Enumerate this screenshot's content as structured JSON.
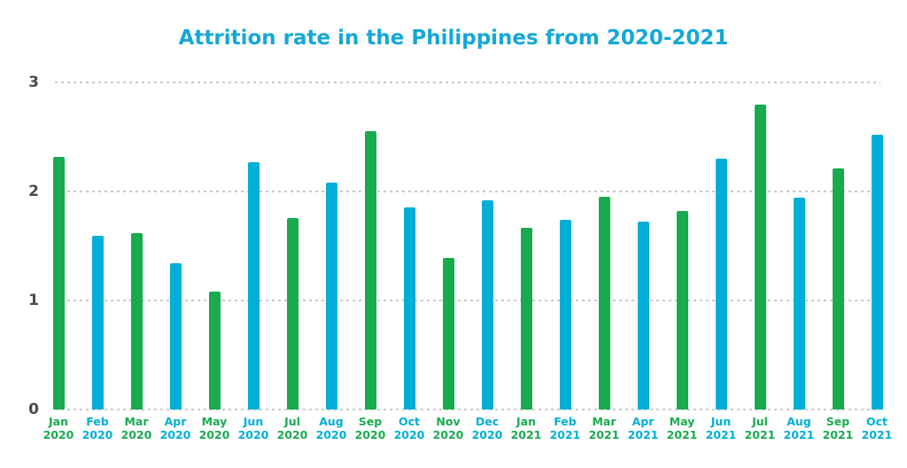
{
  "title": "Attrition rate in the Philippines from 2020-2021",
  "colors": {
    "green": "#18AB4E",
    "cyan": "#00AED8",
    "title_text": "#14A8D6",
    "axis_text": "#4A4A4A",
    "gridline": "#C9C9C9",
    "background": "#FFFFFF"
  },
  "chart_data": {
    "type": "bar",
    "title": "Attrition rate in the Philippines from 2020-2021",
    "xlabel": "",
    "ylabel": "",
    "ylim": [
      0,
      3
    ],
    "yticks": [
      0,
      1,
      2,
      3
    ],
    "grid": "horizontal-dotted",
    "legend": "none",
    "bars": [
      {
        "month": "Jan",
        "year": "2020",
        "value": 2.32,
        "color": "green"
      },
      {
        "month": "Feb",
        "year": "2020",
        "value": 1.59,
        "color": "cyan"
      },
      {
        "month": "Mar",
        "year": "2020",
        "value": 1.62,
        "color": "green"
      },
      {
        "month": "Apr",
        "year": "2020",
        "value": 1.34,
        "color": "cyan"
      },
      {
        "month": "May",
        "year": "2020",
        "value": 1.08,
        "color": "green"
      },
      {
        "month": "Jun",
        "year": "2020",
        "value": 2.27,
        "color": "cyan"
      },
      {
        "month": "Jul",
        "year": "2020",
        "value": 1.76,
        "color": "green"
      },
      {
        "month": "Aug",
        "year": "2020",
        "value": 2.08,
        "color": "cyan"
      },
      {
        "month": "Sep",
        "year": "2020",
        "value": 2.55,
        "color": "green"
      },
      {
        "month": "Oct",
        "year": "2020",
        "value": 1.85,
        "color": "cyan"
      },
      {
        "month": "Nov",
        "year": "2020",
        "value": 1.39,
        "color": "green"
      },
      {
        "month": "Dec",
        "year": "2020",
        "value": 1.92,
        "color": "cyan"
      },
      {
        "month": "Jan",
        "year": "2021",
        "value": 1.67,
        "color": "green"
      },
      {
        "month": "Feb",
        "year": "2021",
        "value": 1.74,
        "color": "cyan"
      },
      {
        "month": "Mar",
        "year": "2021",
        "value": 1.95,
        "color": "green"
      },
      {
        "month": "Apr",
        "year": "2021",
        "value": 1.72,
        "color": "cyan"
      },
      {
        "month": "May",
        "year": "2021",
        "value": 1.82,
        "color": "green"
      },
      {
        "month": "Jun",
        "year": "2021",
        "value": 2.3,
        "color": "cyan"
      },
      {
        "month": "Jul",
        "year": "2021",
        "value": 2.8,
        "color": "green"
      },
      {
        "month": "Aug",
        "year": "2021",
        "value": 1.94,
        "color": "cyan"
      },
      {
        "month": "Sep",
        "year": "2021",
        "value": 2.21,
        "color": "green"
      },
      {
        "month": "Oct",
        "year": "2021",
        "value": 2.52,
        "color": "cyan"
      }
    ]
  }
}
